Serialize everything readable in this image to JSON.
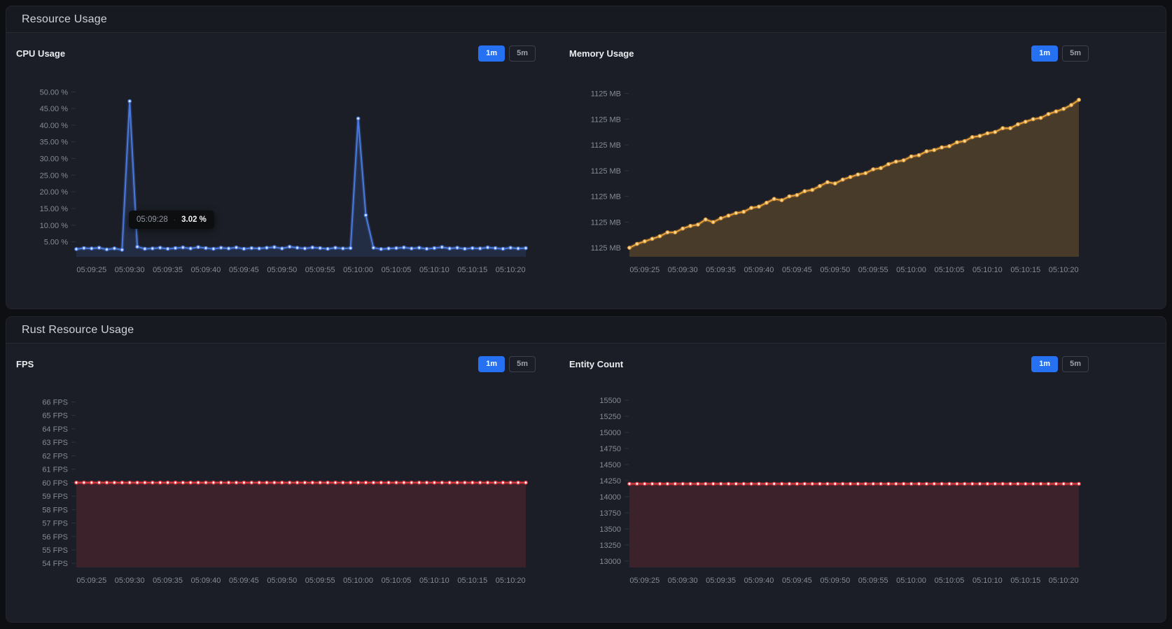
{
  "panels": [
    {
      "title": "Resource Usage"
    },
    {
      "title": "Rust Resource Usage"
    }
  ],
  "controls": {
    "range_1m": "1m",
    "range_5m": "5m",
    "active_range": "1m"
  },
  "tooltip": {
    "time": "05:09:28",
    "value": "3.02 %"
  },
  "chart_data": [
    {
      "type": "area",
      "name": "cpu-usage",
      "title": "CPU Usage",
      "unit": "%",
      "x_start": "05:09:23",
      "x_interval_seconds": 1,
      "x_ticks": [
        "05:09:25",
        "05:09:30",
        "05:09:35",
        "05:09:40",
        "05:09:45",
        "05:09:50",
        "05:09:55",
        "05:10:00",
        "05:10:05",
        "05:10:10",
        "05:10:15",
        "05:10:20"
      ],
      "x_tick_indices": [
        2,
        7,
        12,
        17,
        22,
        27,
        32,
        37,
        42,
        47,
        52,
        57
      ],
      "y_tick_labels": [
        "50.00 %",
        "45.00 %",
        "40.00 %",
        "35.00 %",
        "30.00 %",
        "25.00 %",
        "20.00 %",
        "15.00 %",
        "10.00 %",
        "5.00 %"
      ],
      "y_tick_values": [
        50,
        45,
        40,
        35,
        30,
        25,
        20,
        15,
        10,
        5
      ],
      "ylim": [
        0.5,
        53
      ],
      "line_color": "#4a79dd",
      "marker_color": "#dbe7ff",
      "fill_color": "rgba(74,121,221,0.16)",
      "values": [
        2.8,
        3.1,
        3.0,
        3.2,
        2.7,
        3.02,
        2.6,
        47.2,
        3.5,
        2.9,
        3.0,
        3.2,
        2.9,
        3.1,
        3.3,
        3.0,
        3.4,
        3.1,
        2.9,
        3.2,
        3.0,
        3.3,
        2.9,
        3.1,
        3.0,
        3.2,
        3.4,
        3.0,
        3.5,
        3.2,
        3.0,
        3.3,
        3.1,
        2.9,
        3.2,
        3.0,
        3.1,
        42.0,
        13.0,
        3.2,
        2.8,
        3.0,
        3.1,
        3.3,
        3.0,
        3.2,
        2.9,
        3.1,
        3.4,
        3.0,
        3.2,
        2.9,
        3.1,
        3.0,
        3.3,
        3.1,
        2.9,
        3.2,
        3.0,
        3.1
      ]
    },
    {
      "type": "area",
      "name": "memory-usage",
      "title": "Memory Usage",
      "unit": "MB",
      "x_start": "05:09:23",
      "x_interval_seconds": 1,
      "x_ticks": [
        "05:09:25",
        "05:09:30",
        "05:09:35",
        "05:09:40",
        "05:09:45",
        "05:09:50",
        "05:09:55",
        "05:10:00",
        "05:10:05",
        "05:10:10",
        "05:10:15",
        "05:10:20"
      ],
      "x_tick_indices": [
        2,
        7,
        12,
        17,
        22,
        27,
        32,
        37,
        42,
        47,
        52,
        57
      ],
      "y_tick_labels": [
        "1125 MB",
        "1125 MB",
        "1125 MB",
        "1125 MB",
        "1125 MB",
        "1125 MB",
        "1125 MB"
      ],
      "y_tick_values": [
        1125.55,
        1125.35,
        1125.15,
        1124.95,
        1124.75,
        1124.55,
        1124.35
      ],
      "ylim": [
        1124.28,
        1125.64
      ],
      "line_color": "#e9a23b",
      "marker_color": "#ffe2ae",
      "fill_color": "rgba(233,162,59,0.22)",
      "values": [
        1124.35,
        1124.38,
        1124.4,
        1124.42,
        1124.44,
        1124.47,
        1124.47,
        1124.5,
        1124.52,
        1124.53,
        1124.57,
        1124.55,
        1124.58,
        1124.6,
        1124.62,
        1124.63,
        1124.66,
        1124.67,
        1124.7,
        1124.73,
        1124.72,
        1124.75,
        1124.76,
        1124.79,
        1124.8,
        1124.83,
        1124.86,
        1124.85,
        1124.88,
        1124.9,
        1124.92,
        1124.93,
        1124.96,
        1124.97,
        1125.0,
        1125.02,
        1125.03,
        1125.06,
        1125.07,
        1125.1,
        1125.11,
        1125.13,
        1125.14,
        1125.17,
        1125.18,
        1125.21,
        1125.22,
        1125.24,
        1125.25,
        1125.28,
        1125.28,
        1125.31,
        1125.33,
        1125.35,
        1125.36,
        1125.39,
        1125.41,
        1125.43,
        1125.46,
        1125.5
      ]
    },
    {
      "type": "area",
      "name": "fps",
      "title": "FPS",
      "unit": "FPS",
      "x_start": "05:09:23",
      "x_interval_seconds": 1,
      "x_ticks": [
        "05:09:25",
        "05:09:30",
        "05:09:35",
        "05:09:40",
        "05:09:45",
        "05:09:50",
        "05:09:55",
        "05:10:00",
        "05:10:05",
        "05:10:10",
        "05:10:15",
        "05:10:20"
      ],
      "x_tick_indices": [
        2,
        7,
        12,
        17,
        22,
        27,
        32,
        37,
        42,
        47,
        52,
        57
      ],
      "y_tick_labels": [
        "66 FPS",
        "65 FPS",
        "64 FPS",
        "63 FPS",
        "62 FPS",
        "61 FPS",
        "60 FPS",
        "59 FPS",
        "58 FPS",
        "57 FPS",
        "56 FPS",
        "55 FPS",
        "54 FPS"
      ],
      "y_tick_values": [
        66,
        65,
        64,
        63,
        62,
        61,
        60,
        59,
        58,
        57,
        56,
        55,
        54
      ],
      "ylim": [
        53.7,
        66.7
      ],
      "line_color": "#e23a41",
      "marker_color": "#ffffff",
      "fill_color": "rgba(226,58,65,0.17)",
      "values": [
        60,
        60,
        60,
        60,
        60,
        60,
        60,
        60,
        60,
        60,
        60,
        60,
        60,
        60,
        60,
        60,
        60,
        60,
        60,
        60,
        60,
        60,
        60,
        60,
        60,
        60,
        60,
        60,
        60,
        60,
        60,
        60,
        60,
        60,
        60,
        60,
        60,
        60,
        60,
        60,
        60,
        60,
        60,
        60,
        60,
        60,
        60,
        60,
        60,
        60,
        60,
        60,
        60,
        60,
        60,
        60,
        60,
        60,
        60,
        60
      ]
    },
    {
      "type": "area",
      "name": "entity-count",
      "title": "Entity Count",
      "unit": "",
      "x_start": "05:09:23",
      "x_interval_seconds": 1,
      "x_ticks": [
        "05:09:25",
        "05:09:30",
        "05:09:35",
        "05:09:40",
        "05:09:45",
        "05:09:50",
        "05:09:55",
        "05:10:00",
        "05:10:05",
        "05:10:10",
        "05:10:15",
        "05:10:20"
      ],
      "x_tick_indices": [
        2,
        7,
        12,
        17,
        22,
        27,
        32,
        37,
        42,
        47,
        52,
        57
      ],
      "y_tick_labels": [
        "15500",
        "15250",
        "15000",
        "14750",
        "14500",
        "14250",
        "14000",
        "13750",
        "13500",
        "13250",
        "13000"
      ],
      "y_tick_values": [
        15500,
        15250,
        15000,
        14750,
        14500,
        14250,
        14000,
        13750,
        13500,
        13250,
        13000
      ],
      "ylim": [
        12900,
        15620
      ],
      "line_color": "#e23a41",
      "marker_color": "#ffffff",
      "fill_color": "rgba(226,58,65,0.17)",
      "values": [
        14200,
        14200,
        14200,
        14200,
        14200,
        14200,
        14200,
        14200,
        14200,
        14200,
        14200,
        14200,
        14200,
        14200,
        14200,
        14200,
        14200,
        14200,
        14200,
        14200,
        14200,
        14200,
        14200,
        14200,
        14200,
        14200,
        14200,
        14200,
        14200,
        14200,
        14200,
        14200,
        14200,
        14200,
        14200,
        14200,
        14200,
        14200,
        14200,
        14200,
        14200,
        14200,
        14200,
        14200,
        14200,
        14200,
        14200,
        14200,
        14200,
        14200,
        14200,
        14200,
        14200,
        14200,
        14200,
        14200,
        14200,
        14200,
        14200,
        14200
      ]
    }
  ]
}
